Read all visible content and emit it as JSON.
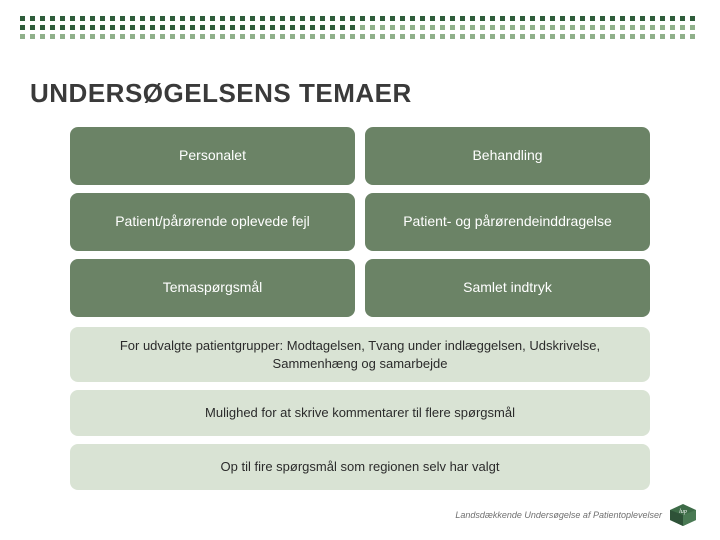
{
  "colors": {
    "dot_dark": "#2e5c3a",
    "dot_light": "#8fb08a",
    "dark_box_bg": "#6b8366",
    "light_box_bg": "#d9e3d4",
    "title_color": "#3a3a3a",
    "footer_text": "#707070"
  },
  "title": "UNDERSØGELSENS TEMAER",
  "darkBoxes": [
    "Personalet",
    "Behandling",
    "Patient/pårørende oplevede fejl",
    "Patient- og pårørendeinddragelse",
    "Temaspørgsmål",
    "Samlet indtryk"
  ],
  "lightBoxes": [
    "For udvalgte patientgrupper: Modtagelsen, Tvang under indlæggelsen, Udskrivelse, Sammenhæng og samarbejde",
    "Mulighed for at skrive kommentarer til flere spørgsmål",
    "Op til fire spørgsmål som regionen selv har valgt"
  ],
  "footer": {
    "text": "Landsdækkende Undersøgelse af Patientoplevelser",
    "logo_label": "LUP"
  }
}
